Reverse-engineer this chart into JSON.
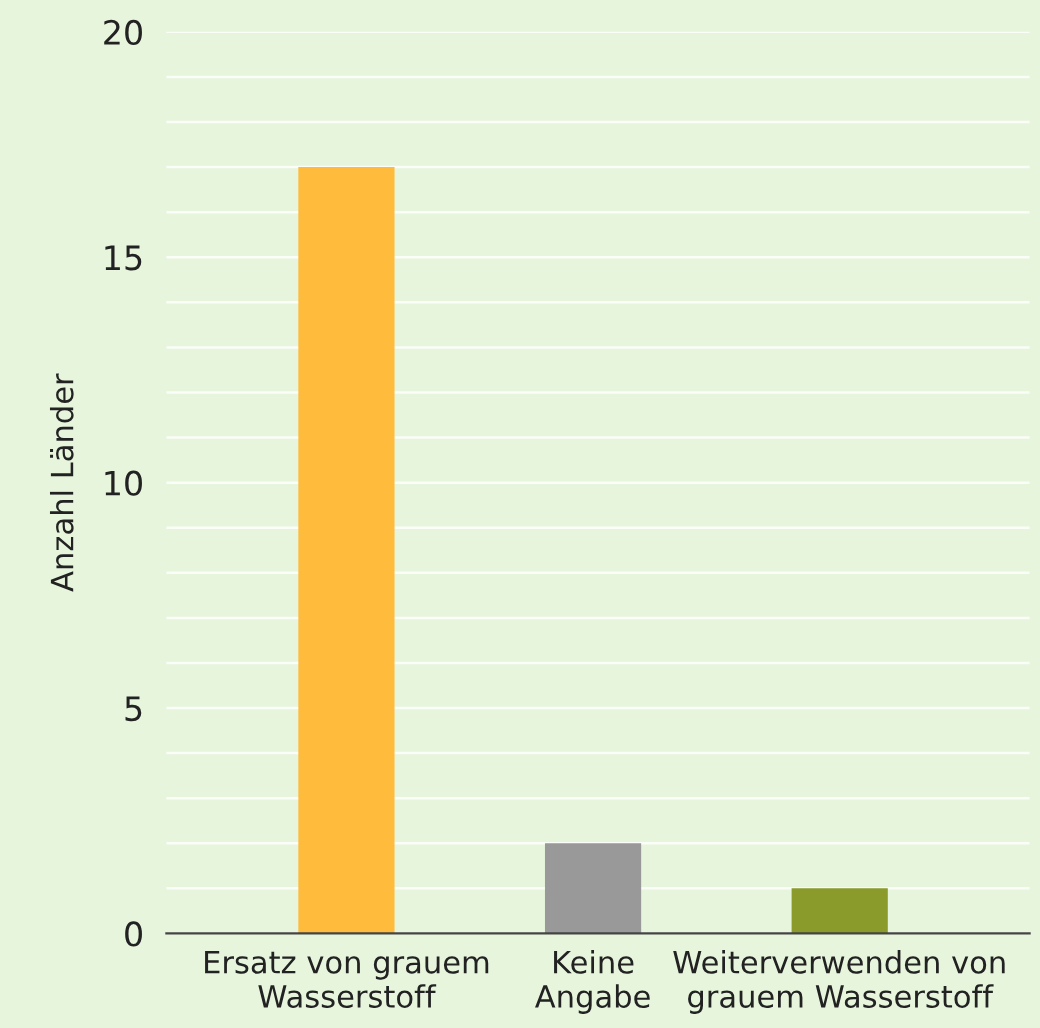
{
  "chart_data": {
    "type": "bar",
    "ylabel": "Anzahl Länder",
    "categories": [
      "Ersatz von grauem\nWasserstoff",
      "Keine\nAngabe",
      "Weiterverwenden von\ngrauem Wasserstoff"
    ],
    "values": [
      17,
      2,
      1
    ],
    "colors": [
      "#ffbb3b",
      "#999999",
      "#8a9a2b"
    ],
    "ylim": [
      0,
      20
    ],
    "yticks": [
      0,
      {
        "value": 1,
        "label": null
      },
      {
        "value": 2,
        "label": null
      },
      {
        "value": 3,
        "label": null
      },
      {
        "value": 4,
        "label": null
      },
      5,
      {
        "value": 6,
        "label": null
      },
      {
        "value": 7,
        "label": null
      },
      {
        "value": 8,
        "label": null
      },
      {
        "value": 9,
        "label": null
      },
      10,
      {
        "value": 11,
        "label": null
      },
      {
        "value": 12,
        "label": null
      },
      {
        "value": 13,
        "label": null
      },
      {
        "value": 14,
        "label": null
      },
      15,
      {
        "value": 16,
        "label": null
      },
      {
        "value": 17,
        "label": null
      },
      {
        "value": 18,
        "label": null
      },
      {
        "value": 19,
        "label": null
      },
      20
    ],
    "grid": "y"
  }
}
